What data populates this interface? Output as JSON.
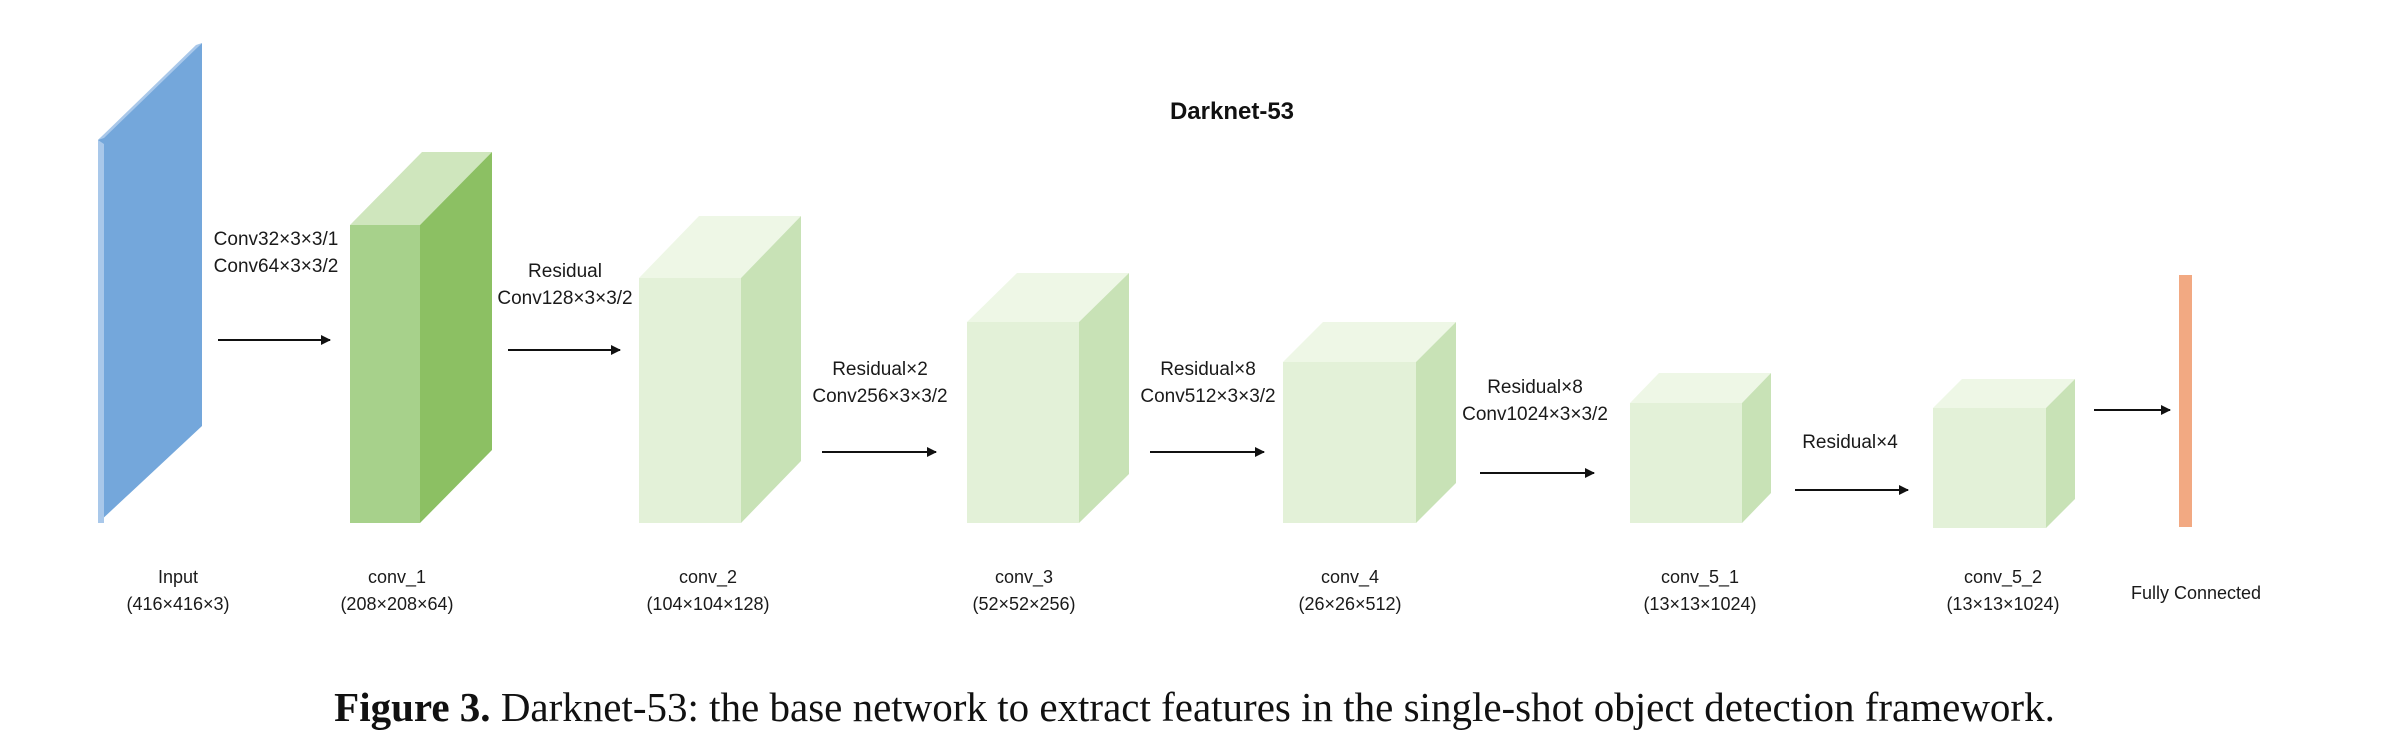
{
  "diagram": {
    "title": "Darknet-53",
    "colors": {
      "input_front": "#74a7db",
      "input_side": "#a9c8ea",
      "conv1_front": "#a7d18b",
      "conv1_side": "#8cc063",
      "conv1_top": "#cfe6bd",
      "light_front": "#e3f1d8",
      "light_side": "#c8e2b6",
      "light_top": "#eef7e6",
      "fc": "#f2a982",
      "arrow": "#111111"
    },
    "blocks": [
      {
        "id": "input",
        "label": "Input",
        "dims": "(416×416×3)"
      },
      {
        "id": "conv1",
        "label": "conv_1",
        "dims": "(208×208×64)"
      },
      {
        "id": "conv2",
        "label": "conv_2",
        "dims": "(104×104×128)"
      },
      {
        "id": "conv3",
        "label": "conv_3",
        "dims": "(52×52×256)"
      },
      {
        "id": "conv4",
        "label": "conv_4",
        "dims": "(26×26×512)"
      },
      {
        "id": "conv51",
        "label": "conv_5_1",
        "dims": "(13×13×1024)"
      },
      {
        "id": "conv52",
        "label": "conv_5_2",
        "dims": "(13×13×1024)"
      },
      {
        "id": "fc",
        "label": "Fully Connected",
        "dims": ""
      }
    ],
    "transitions": [
      {
        "lines": [
          "Conv32×3×3/1",
          "Conv64×3×3/2"
        ]
      },
      {
        "lines": [
          "Residual",
          "Conv128×3×3/2"
        ]
      },
      {
        "lines": [
          "Residual×2",
          "Conv256×3×3/2"
        ]
      },
      {
        "lines": [
          "Residual×8",
          "Conv512×3×3/2"
        ]
      },
      {
        "lines": [
          "Residual×8",
          "Conv1024×3×3/2"
        ]
      },
      {
        "lines": [
          "Residual×4"
        ]
      },
      {
        "lines": []
      }
    ]
  },
  "caption": {
    "label": "Figure 3.",
    "text": "Darknet-53: the base network to extract features in the single-shot object detection framework."
  }
}
